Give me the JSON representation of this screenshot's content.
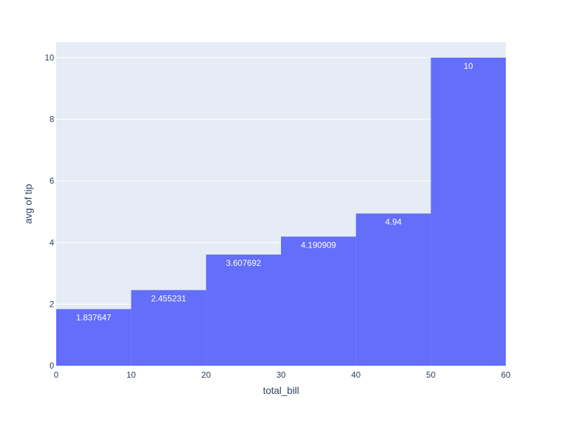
{
  "colors": {
    "plot_background": "#E5ECF6",
    "gridline": "#ffffff",
    "bar": "#636EFA",
    "text": "#2a3f5f",
    "data_label": "#ffffff"
  },
  "chart_data": {
    "type": "bar",
    "subtype": "histogram",
    "title": "",
    "xlabel": "total_bill",
    "ylabel": "avg of tip",
    "xlim": [
      0,
      60
    ],
    "ylim": [
      0,
      10.5
    ],
    "grid": true,
    "legend": "none",
    "bins": [
      {
        "start": 0,
        "end": 10,
        "value": 1.837647,
        "label": "1.837647"
      },
      {
        "start": 10,
        "end": 20,
        "value": 2.455231,
        "label": "2.455231"
      },
      {
        "start": 20,
        "end": 30,
        "value": 3.607692,
        "label": "3.607692"
      },
      {
        "start": 30,
        "end": 40,
        "value": 4.190909,
        "label": "4.190909"
      },
      {
        "start": 40,
        "end": 50,
        "value": 4.94,
        "label": "4.94"
      },
      {
        "start": 50,
        "end": 60,
        "value": 10,
        "label": "10"
      }
    ],
    "x_ticks": [
      {
        "value": 0,
        "label": "0"
      },
      {
        "value": 10,
        "label": "10"
      },
      {
        "value": 20,
        "label": "20"
      },
      {
        "value": 30,
        "label": "30"
      },
      {
        "value": 40,
        "label": "40"
      },
      {
        "value": 50,
        "label": "50"
      },
      {
        "value": 60,
        "label": "60"
      }
    ],
    "y_ticks": [
      {
        "value": 0,
        "label": "0"
      },
      {
        "value": 2,
        "label": "2"
      },
      {
        "value": 4,
        "label": "4"
      },
      {
        "value": 6,
        "label": "6"
      },
      {
        "value": 8,
        "label": "8"
      },
      {
        "value": 10,
        "label": "10"
      }
    ]
  }
}
